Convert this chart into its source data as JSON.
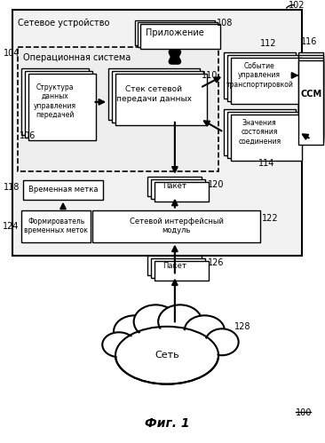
{
  "title": "Фиг. 1",
  "label_102": "102",
  "label_100": "100",
  "label_104": "104",
  "label_106": "106",
  "label_108": "108",
  "label_110": "110",
  "label_112": "112",
  "label_114": "114",
  "label_116": "116",
  "label_118": "118",
  "label_120": "120",
  "label_122": "122",
  "label_124": "124",
  "label_126": "126",
  "label_128": "128",
  "text_network_device": "Сетевое устройство",
  "text_app": "Приложение",
  "text_os": "Операционная система",
  "text_struct": "Структура\nданных\nуправления\nпередачей",
  "text_stack": "Стек сетевой\nпередачи данных",
  "text_event": "Событие\nуправления\nтранспортировкой",
  "text_ccm": "ССМ",
  "text_conn": "Значения\nсостояния\nсоединения",
  "text_timestamp": "Временная метка",
  "text_packet": "Пакет",
  "text_netif": "Сетевой интерфейсный\nмодуль",
  "text_stamper": "Формирователь\nвременных меток",
  "text_packet2": "Пакет",
  "text_network": "Сеть",
  "bg_color": "#ffffff",
  "box_fill": "#ffffff",
  "box_edge": "#000000"
}
